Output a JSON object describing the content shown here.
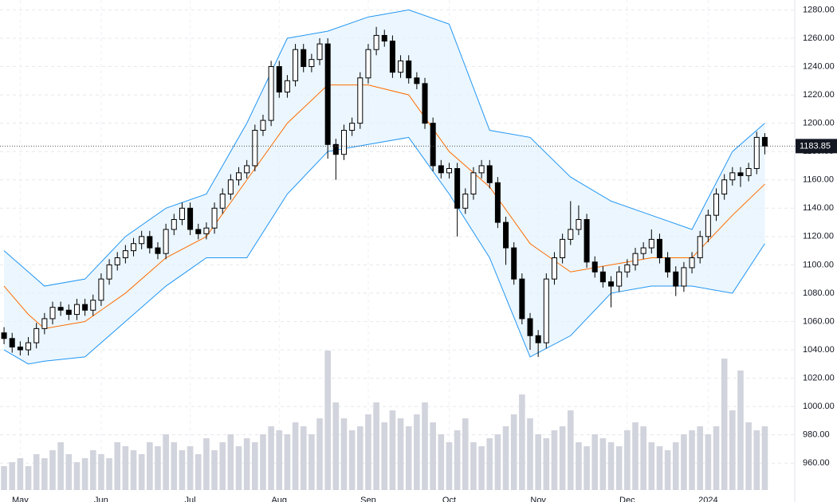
{
  "chart_data": {
    "type": "candlestick",
    "ylim": [
      941,
      1287
    ],
    "yticks": [
      {
        "value": 960,
        "label": "960.00"
      },
      {
        "value": 980,
        "label": "980.00"
      },
      {
        "value": 1000,
        "label": "1000.00"
      },
      {
        "value": 1020,
        "label": "1020.00"
      },
      {
        "value": 1040,
        "label": "1040.00"
      },
      {
        "value": 1060,
        "label": "1060.00"
      },
      {
        "value": 1080,
        "label": "1080.00"
      },
      {
        "value": 1100,
        "label": "1100.00"
      },
      {
        "value": 1120,
        "label": "1120.00"
      },
      {
        "value": 1140,
        "label": "1140.00"
      },
      {
        "value": 1160,
        "label": "1160.00"
      },
      {
        "value": 1180,
        "label": "1180.00"
      },
      {
        "value": 1200,
        "label": "1200.00"
      },
      {
        "value": 1220,
        "label": "1220.00"
      },
      {
        "value": 1240,
        "label": "1240.00"
      },
      {
        "value": 1260,
        "label": "1260.00"
      },
      {
        "value": 1280,
        "label": "1280.00"
      }
    ],
    "xlim": [
      -0.5,
      97.7
    ],
    "xticks": [
      {
        "value": 2,
        "label": "May"
      },
      {
        "value": 12,
        "label": "Jun"
      },
      {
        "value": 23,
        "label": "Jul"
      },
      {
        "value": 34,
        "label": "Aug"
      },
      {
        "value": 45,
        "label": "Sep"
      },
      {
        "value": 55,
        "label": "Oct"
      },
      {
        "value": 66,
        "label": "Nov"
      },
      {
        "value": 77,
        "label": "Dec"
      },
      {
        "value": 87,
        "label": "2024"
      }
    ],
    "grid": true,
    "up_color": "#ffffff",
    "down_color": "#000000",
    "open": [
      1052,
      1048,
      1042,
      1040,
      1045,
      1055,
      1062,
      1070,
      1068,
      1065,
      1072,
      1068,
      1075,
      1090,
      1100,
      1105,
      1110,
      1115,
      1120,
      1112,
      1108,
      1125,
      1132,
      1140,
      1125,
      1122,
      1126,
      1140,
      1150,
      1160,
      1165,
      1170,
      1195,
      1202,
      1240,
      1222,
      1230,
      1252,
      1240,
      1245,
      1256,
      1185,
      1178,
      1195,
      1200,
      1232,
      1252,
      1262,
      1258,
      1236,
      1244,
      1232,
      1228,
      1200,
      1170,
      1165,
      1168,
      1140,
      1150,
      1165,
      1170,
      1158,
      1130,
      1112,
      1090,
      1062,
      1050,
      1045,
      1090,
      1105,
      1118,
      1125,
      1132,
      1102,
      1095,
      1088,
      1085,
      1095,
      1100,
      1108,
      1112,
      1118,
      1105,
      1095,
      1085,
      1098,
      1105,
      1120,
      1135,
      1150,
      1160,
      1165,
      1163,
      1168,
      1190
    ],
    "high": [
      1056,
      1052,
      1046,
      1049,
      1059,
      1066,
      1074,
      1074,
      1072,
      1076,
      1076,
      1079,
      1094,
      1104,
      1109,
      1114,
      1119,
      1124,
      1124,
      1116,
      1129,
      1136,
      1144,
      1144,
      1129,
      1130,
      1144,
      1154,
      1164,
      1169,
      1174,
      1199,
      1206,
      1244,
      1244,
      1234,
      1256,
      1256,
      1249,
      1260,
      1260,
      1189,
      1199,
      1204,
      1236,
      1256,
      1268,
      1266,
      1262,
      1248,
      1248,
      1236,
      1232,
      1204,
      1174,
      1172,
      1172,
      1154,
      1169,
      1174,
      1174,
      1162,
      1134,
      1116,
      1094,
      1066,
      1054,
      1094,
      1109,
      1122,
      1145,
      1142,
      1136,
      1106,
      1099,
      1092,
      1099,
      1104,
      1112,
      1116,
      1125,
      1122,
      1109,
      1099,
      1102,
      1109,
      1124,
      1139,
      1154,
      1164,
      1169,
      1169,
      1172,
      1194,
      1193
    ],
    "low": [
      1044,
      1038,
      1036,
      1036,
      1041,
      1051,
      1058,
      1064,
      1061,
      1061,
      1064,
      1064,
      1071,
      1086,
      1096,
      1101,
      1106,
      1111,
      1108,
      1104,
      1104,
      1121,
      1128,
      1121,
      1118,
      1118,
      1122,
      1136,
      1146,
      1156,
      1161,
      1166,
      1191,
      1198,
      1218,
      1218,
      1226,
      1236,
      1236,
      1241,
      1175,
      1160,
      1174,
      1191,
      1196,
      1228,
      1248,
      1254,
      1232,
      1232,
      1228,
      1224,
      1196,
      1166,
      1161,
      1161,
      1120,
      1136,
      1146,
      1161,
      1154,
      1126,
      1100,
      1086,
      1058,
      1040,
      1035,
      1041,
      1086,
      1101,
      1114,
      1121,
      1098,
      1091,
      1084,
      1070,
      1081,
      1091,
      1096,
      1104,
      1108,
      1101,
      1091,
      1078,
      1081,
      1094,
      1101,
      1116,
      1131,
      1146,
      1156,
      1155,
      1159,
      1164,
      1178
    ],
    "close": [
      1048,
      1042,
      1040,
      1045,
      1055,
      1062,
      1070,
      1068,
      1065,
      1072,
      1068,
      1075,
      1090,
      1100,
      1105,
      1110,
      1115,
      1120,
      1112,
      1108,
      1125,
      1132,
      1140,
      1125,
      1122,
      1126,
      1140,
      1150,
      1160,
      1165,
      1170,
      1195,
      1202,
      1240,
      1222,
      1230,
      1252,
      1240,
      1245,
      1256,
      1185,
      1178,
      1195,
      1200,
      1232,
      1252,
      1262,
      1258,
      1236,
      1244,
      1232,
      1228,
      1200,
      1170,
      1165,
      1168,
      1140,
      1150,
      1165,
      1170,
      1158,
      1130,
      1112,
      1090,
      1062,
      1050,
      1045,
      1090,
      1105,
      1118,
      1125,
      1132,
      1102,
      1095,
      1088,
      1085,
      1095,
      1100,
      1108,
      1112,
      1118,
      1105,
      1095,
      1085,
      1098,
      1105,
      1120,
      1135,
      1150,
      1160,
      1165,
      1163,
      1168,
      1190,
      1183.85
    ],
    "volume": [
      30,
      35,
      40,
      30,
      45,
      40,
      50,
      60,
      45,
      35,
      40,
      50,
      45,
      40,
      60,
      55,
      50,
      45,
      60,
      55,
      70,
      60,
      50,
      55,
      45,
      65,
      50,
      60,
      70,
      55,
      65,
      60,
      70,
      80,
      75,
      70,
      85,
      80,
      70,
      90,
      175,
      110,
      90,
      75,
      80,
      95,
      110,
      85,
      100,
      90,
      80,
      95,
      110,
      85,
      70,
      60,
      75,
      90,
      60,
      55,
      65,
      70,
      80,
      95,
      120,
      90,
      70,
      65,
      75,
      80,
      100,
      60,
      55,
      70,
      65,
      60,
      55,
      75,
      85,
      80,
      60,
      55,
      50,
      60,
      70,
      75,
      80,
      70,
      80,
      165,
      100,
      150,
      85,
      75,
      80
    ],
    "volume_lim": [
      0,
      200
    ],
    "volume_color": "#d1d4dc",
    "bands": {
      "x": [
        0,
        3,
        5,
        10,
        15,
        20,
        25,
        30,
        35,
        40,
        45,
        50,
        55,
        60,
        65,
        70,
        75,
        80,
        85,
        90,
        94
      ],
      "upper": [
        1110,
        1095,
        1085,
        1090,
        1120,
        1140,
        1150,
        1200,
        1260,
        1265,
        1275,
        1280,
        1270,
        1195,
        1190,
        1162,
        1145,
        1135,
        1125,
        1180,
        1200
      ],
      "middle": [
        1085,
        1065,
        1055,
        1060,
        1080,
        1105,
        1120,
        1160,
        1200,
        1227,
        1227,
        1220,
        1180,
        1155,
        1115,
        1095,
        1100,
        1105,
        1105,
        1135,
        1157
      ],
      "lower": [
        1040,
        1030,
        1032,
        1035,
        1060,
        1085,
        1105,
        1105,
        1150,
        1180,
        1185,
        1190,
        1150,
        1105,
        1035,
        1050,
        1080,
        1085,
        1085,
        1080,
        1115
      ],
      "band_color": "#2196f3",
      "middle_color": "#ff6d00",
      "fill": "#e3f2fd"
    }
  }
}
